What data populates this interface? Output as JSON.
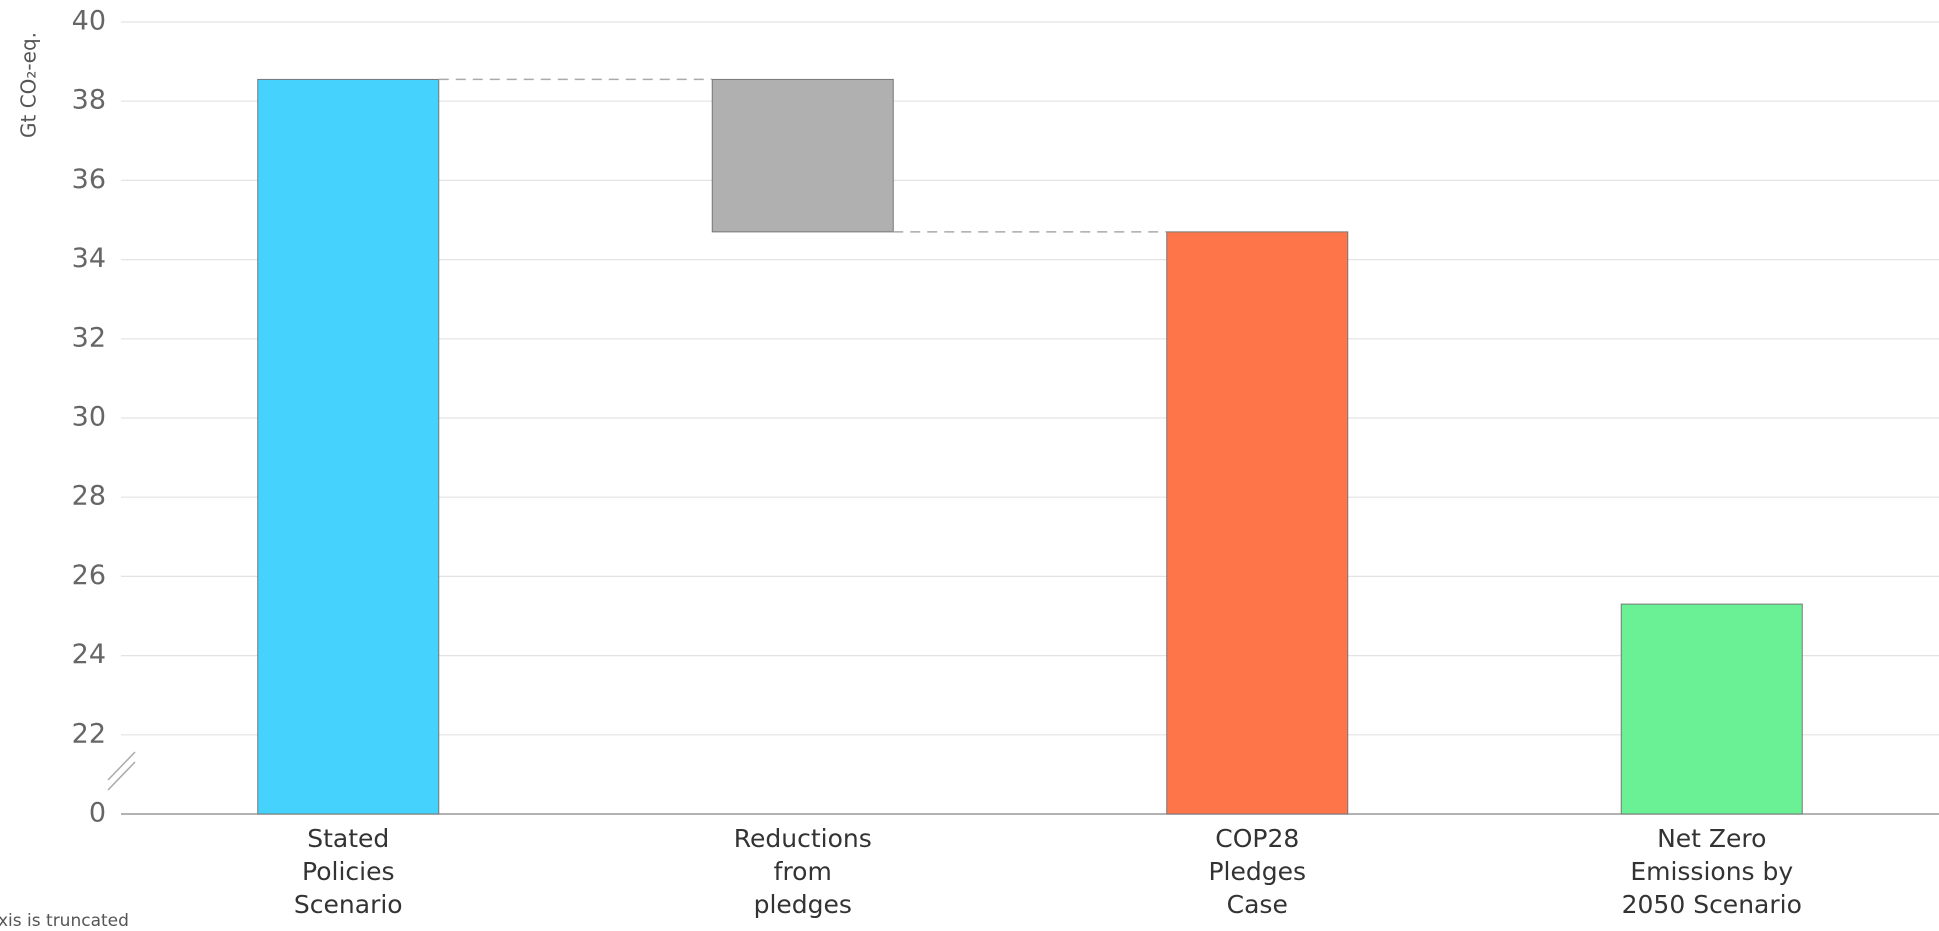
{
  "chart_data": {
    "type": "waterfall",
    "y_label": "Gt CO₂-eq.",
    "note": "xis is truncated",
    "categories": [
      [
        "Stated",
        "Policies",
        "Scenario"
      ],
      [
        "Reductions",
        "from",
        "pledges"
      ],
      [
        "COP28",
        "Pledges",
        "Case"
      ],
      [
        "Net Zero",
        "Emissions by",
        "2050 Scenario"
      ]
    ],
    "values": [
      38.55,
      -3.85,
      34.7,
      25.3
    ],
    "measure": [
      "absolute",
      "relative",
      "absolute",
      "absolute"
    ],
    "colors": [
      "#45d3fd",
      "#b0b0b0",
      "#fe754a",
      "#6af195"
    ],
    "ylim": [
      0,
      40
    ],
    "axis_break": [
      0,
      20
    ],
    "yticks": [
      0,
      22,
      24,
      26,
      28,
      30,
      32,
      34,
      36,
      38,
      40
    ],
    "grid": true
  }
}
